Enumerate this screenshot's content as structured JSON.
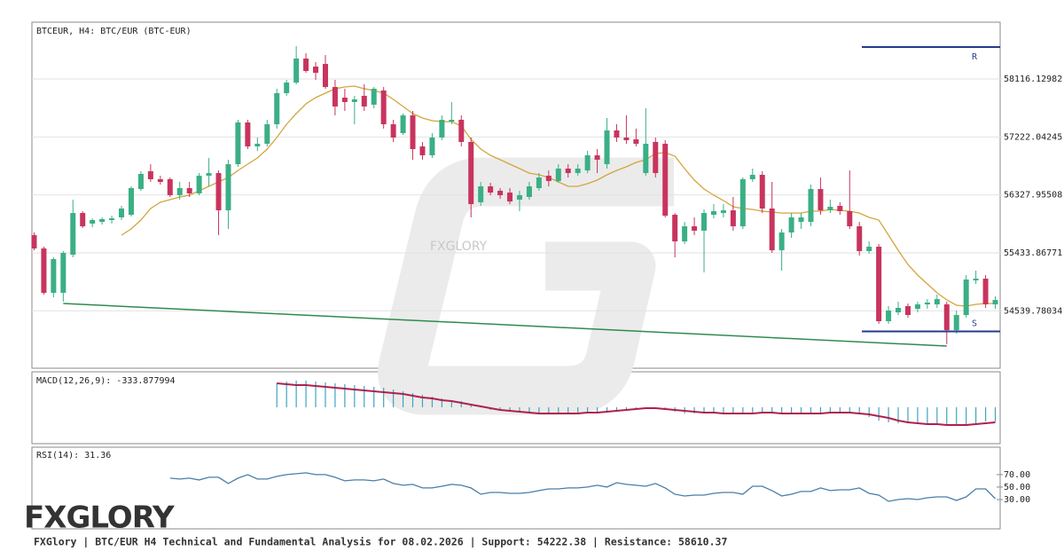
{
  "chart_data": [
    {
      "type": "candlestick",
      "title": "BTCEUR, H4: BTC/EUR (BTC-EUR)",
      "watermark": "FXGLORY",
      "up_color": "#3aaf85",
      "down_color": "#c8345e",
      "grid": true,
      "ylim": [
        53654,
        58993
      ],
      "yticks": [
        58116.12982,
        57222.04245,
        56327.95508,
        55433.86771,
        54539.78034
      ],
      "open": [
        55707,
        55502,
        54817,
        54817,
        55406,
        56049,
        55885,
        55912,
        55940,
        55981,
        56022,
        56419,
        56693,
        56570,
        56570,
        56323,
        56433,
        56351,
        56624,
        56665,
        56090,
        56802,
        57446,
        57076,
        57117,
        57418,
        57898,
        58062,
        58432,
        58308,
        58349,
        57993,
        57829,
        57761,
        57857,
        57720,
        57939,
        57418,
        57281,
        57555,
        57076,
        56939,
        57213,
        57459,
        57487,
        57145,
        56214,
        56460,
        56392,
        56364,
        56255,
        56296,
        56433,
        56624,
        56542,
        56734,
        56665,
        56706,
        56939,
        56802,
        57323,
        57213,
        57186,
        56665,
        57145,
        57117,
        56022,
        55611,
        55844,
        55776,
        56022,
        56049,
        56090,
        55844,
        56570,
        56638,
        56118,
        55474,
        55748,
        55912,
        55912,
        56419,
        56090,
        56159,
        56077,
        55844,
        55461,
        55529,
        54379,
        54516,
        54612,
        54571,
        54639,
        54639,
        54639,
        54242,
        54475,
        55009,
        55036,
        54639
      ],
      "high": [
        55748,
        55529,
        55365,
        55461,
        56255,
        56077,
        55967,
        55981,
        56008,
        56159,
        56460,
        56693,
        56802,
        56624,
        56597,
        56529,
        56529,
        56665,
        56898,
        56706,
        56871,
        57487,
        57487,
        57213,
        57487,
        57966,
        58103,
        58623,
        58514,
        58377,
        58486,
        58103,
        57966,
        57857,
        58034,
        57993,
        57993,
        57487,
        57583,
        57624,
        57145,
        57281,
        57555,
        57761,
        57555,
        57213,
        56529,
        56515,
        56433,
        56433,
        56392,
        56529,
        56665,
        56706,
        56802,
        56802,
        56802,
        57008,
        57035,
        57514,
        57418,
        57555,
        57350,
        57665,
        57213,
        57172,
        56049,
        55912,
        55981,
        56104,
        56186,
        56186,
        56296,
        56597,
        56734,
        56693,
        56529,
        55803,
        56049,
        56049,
        56487,
        56597,
        56255,
        56214,
        56706,
        55912,
        55611,
        55570,
        54612,
        54680,
        54653,
        54680,
        54721,
        54790,
        54680,
        54544,
        55091,
        55160,
        55091,
        54763
      ],
      "low": [
        55474,
        54790,
        54749,
        54680,
        55365,
        55817,
        55830,
        55871,
        55885,
        55940,
        55995,
        56392,
        56529,
        56487,
        56296,
        56255,
        56296,
        56323,
        56460,
        55707,
        55803,
        56761,
        57035,
        57008,
        57076,
        57350,
        57857,
        58034,
        58212,
        58103,
        57966,
        57555,
        57624,
        57418,
        57624,
        57665,
        57350,
        57145,
        57254,
        56871,
        56871,
        56898,
        57172,
        57418,
        57076,
        55981,
        56159,
        56323,
        56268,
        56186,
        56077,
        56255,
        56392,
        56460,
        56515,
        56597,
        56624,
        56665,
        56665,
        56734,
        57145,
        57117,
        57076,
        56624,
        56597,
        55981,
        55365,
        55570,
        55707,
        55132,
        55967,
        55981,
        55776,
        55803,
        56529,
        56049,
        55433,
        55160,
        55666,
        55803,
        55844,
        56022,
        56049,
        56022,
        55803,
        55392,
        55420,
        54338,
        54338,
        54475,
        54434,
        54516,
        54571,
        54585,
        54023,
        54188,
        54434,
        54954,
        54585,
        54571
      ],
      "close": [
        55502,
        54817,
        55338,
        55433,
        56049,
        55844,
        55940,
        55954,
        55967,
        56118,
        56433,
        56652,
        56570,
        56529,
        56323,
        56433,
        56351,
        56624,
        56665,
        56090,
        56802,
        57446,
        57076,
        57117,
        57418,
        57898,
        58062,
        58432,
        58240,
        58212,
        57993,
        57692,
        57761,
        57802,
        57692,
        57966,
        57418,
        57213,
        57555,
        57035,
        56939,
        57213,
        57487,
        57487,
        57145,
        56186,
        56460,
        56364,
        56323,
        56227,
        56323,
        56460,
        56597,
        56542,
        56734,
        56665,
        56734,
        56939,
        56871,
        57323,
        57213,
        57172,
        57117,
        57117,
        56665,
        56008,
        55611,
        55844,
        55776,
        56049,
        56077,
        56090,
        55844,
        56570,
        56638,
        56118,
        55474,
        55748,
        55981,
        55981,
        56419,
        56090,
        56145,
        56077,
        55844,
        55461,
        55529,
        54379,
        54544,
        54585,
        54475,
        54639,
        54667,
        54721,
        54242,
        54475,
        55023,
        55036,
        54639,
        54708
      ],
      "ma": {
        "color": "#d4a53c",
        "values": [
          null,
          null,
          null,
          null,
          null,
          null,
          null,
          null,
          null,
          55707,
          55803,
          55940,
          56118,
          56214,
          56255,
          56296,
          56323,
          56392,
          56460,
          56529,
          56597,
          56706,
          56802,
          56898,
          57035,
          57213,
          57418,
          57583,
          57733,
          57829,
          57898,
          57966,
          57993,
          58007,
          57966,
          57939,
          57898,
          57802,
          57692,
          57583,
          57514,
          57473,
          57459,
          57459,
          57391,
          57186,
          57035,
          56939,
          56871,
          56802,
          56734,
          56665,
          56638,
          56597,
          56529,
          56460,
          56460,
          56501,
          56556,
          56638,
          56706,
          56761,
          56830,
          56871,
          56967,
          56980,
          56926,
          56734,
          56556,
          56419,
          56323,
          56241,
          56145,
          56118,
          56104,
          56077,
          56063,
          56049,
          56049,
          56049,
          56077,
          56077,
          56104,
          56090,
          56077,
          56049,
          55981,
          55940,
          55707,
          55474,
          55255,
          55091,
          54954,
          54817,
          54708,
          54626,
          54612,
          54639,
          54653,
          54653
        ]
      },
      "trendline": {
        "color": "#2e8b4e",
        "x": [
          3,
          94
        ],
        "values": [
          54653,
          53996
        ]
      },
      "levels": [
        {
          "label": "R",
          "value": 58610.37,
          "color": "#27398c"
        },
        {
          "label": "S",
          "value": 54222.38,
          "color": "#27398c"
        }
      ]
    },
    {
      "type": "macd",
      "label": "MACD(12,26,9): -333.877994",
      "ylim": [
        -857,
        836
      ],
      "histogram": {
        "color": "#3fa3bf",
        "values": [
          null,
          null,
          null,
          null,
          null,
          null,
          null,
          null,
          null,
          null,
          null,
          null,
          null,
          null,
          null,
          null,
          null,
          null,
          null,
          null,
          null,
          null,
          null,
          null,
          null,
          564,
          606,
          627,
          627,
          606,
          585,
          564,
          543,
          523,
          502,
          481,
          460,
          418,
          376,
          334,
          293,
          251,
          209,
          167,
          146,
          84,
          -5,
          -63,
          -84,
          -105,
          -125,
          -125,
          -146,
          -146,
          -146,
          -146,
          -125,
          -125,
          -105,
          -84,
          -63,
          -42,
          -21,
          -5,
          -21,
          -63,
          -105,
          -146,
          -146,
          -146,
          -146,
          -146,
          -146,
          -146,
          -125,
          -125,
          -146,
          -167,
          -167,
          -146,
          -146,
          -125,
          -125,
          -125,
          -146,
          -167,
          -230,
          -314,
          -355,
          -376,
          -376,
          -397,
          -397,
          -397,
          -418,
          -439,
          -418,
          -376,
          -334,
          -333.877994
        ]
      },
      "signal": {
        "color": "#b01f4d",
        "values": [
          null,
          null,
          null,
          null,
          null,
          null,
          null,
          null,
          null,
          null,
          null,
          null,
          null,
          null,
          null,
          null,
          null,
          null,
          null,
          null,
          null,
          null,
          null,
          null,
          null,
          564,
          543,
          523,
          523,
          502,
          481,
          460,
          439,
          418,
          397,
          376,
          355,
          334,
          314,
          272,
          230,
          209,
          167,
          146,
          105,
          63,
          21,
          -21,
          -63,
          -84,
          -105,
          -125,
          -146,
          -146,
          -146,
          -146,
          -146,
          -125,
          -125,
          -105,
          -84,
          -63,
          -42,
          -21,
          -21,
          -42,
          -63,
          -84,
          -105,
          -125,
          -125,
          -146,
          -146,
          -146,
          -146,
          -125,
          -125,
          -146,
          -146,
          -146,
          -146,
          -146,
          -125,
          -125,
          -125,
          -146,
          -167,
          -209,
          -251,
          -314,
          -355,
          -376,
          -397,
          -397,
          -418,
          -418,
          -418,
          -397,
          -376,
          -355
        ]
      }
    },
    {
      "type": "rsi",
      "label": "RSI(14): 31.36",
      "color": "#4a7ea8",
      "ylim": [
        -17,
        114
      ],
      "yticks": [
        {
          "value": 70,
          "label": "70.00"
        },
        {
          "value": 50,
          "label": "50.00"
        },
        {
          "value": 30,
          "label": "30.00"
        }
      ],
      "values": [
        null,
        null,
        null,
        null,
        null,
        null,
        null,
        null,
        null,
        null,
        null,
        null,
        null,
        null,
        64.3,
        62.9,
        64.3,
        61.4,
        65.7,
        65.7,
        55.7,
        64.3,
        70,
        62.9,
        62.9,
        67.1,
        70,
        71.4,
        72.9,
        70,
        70,
        65.7,
        60,
        61.4,
        61.4,
        60,
        62.9,
        55.7,
        52.9,
        54.3,
        48.6,
        48.6,
        51.4,
        54.3,
        52.9,
        48.6,
        38.6,
        41.4,
        41.4,
        40,
        40,
        41.4,
        44.3,
        47.1,
        47.1,
        48.6,
        48.6,
        50,
        52.9,
        50,
        57.1,
        54.3,
        52.9,
        51.4,
        55.7,
        48.6,
        38.6,
        35.7,
        37.1,
        37.1,
        40,
        41.4,
        41.4,
        38.6,
        51.4,
        51.4,
        44.3,
        35.7,
        38.6,
        42.9,
        42.9,
        48.6,
        44.3,
        45.7,
        45.7,
        48.6,
        40,
        37.1,
        27.1,
        30,
        31.4,
        30,
        32.9,
        34.3,
        34.3,
        28.6,
        34.3,
        47.1,
        47.1,
        31.36
      ]
    }
  ],
  "brand": "FXGLORY",
  "footer": "FXGlory | BTC/EUR H4 Technical and Fundamental Analysis for 08.02.2026 | Support: 54222.38 | Resistance: 58610.37"
}
